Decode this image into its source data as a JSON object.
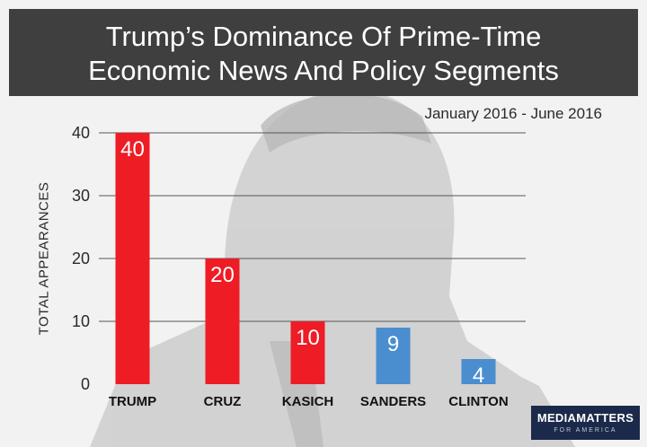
{
  "title_line1": "Trump’s Dominance Of Prime-Time",
  "title_line2": "Economic News And Policy Segments",
  "date_range": "January 2016 - June 2016",
  "logo": {
    "main": "MEDIAMATTERS",
    "sub": "FOR AMERICA"
  },
  "colors": {
    "republican": "#ee1c25",
    "democrat": "#4a8ed0",
    "title_bar": "#3f3f3f",
    "logo_bg": "#1b2a4a"
  },
  "chart_data": {
    "type": "bar",
    "title": "Trump’s Dominance Of Prime-Time Economic News And Policy Segments",
    "subtitle": "January 2016 - June 2016",
    "xlabel": "",
    "ylabel": "TOTAL APPEARANCES",
    "categories": [
      "TRUMP",
      "CRUZ",
      "KASICH",
      "SANDERS",
      "CLINTON"
    ],
    "values": [
      40,
      20,
      10,
      9,
      4
    ],
    "bar_colors": [
      "#ee1c25",
      "#ee1c25",
      "#ee1c25",
      "#4a8ed0",
      "#4a8ed0"
    ],
    "ylim": [
      0,
      40
    ],
    "yticks": [
      0,
      10,
      20,
      30,
      40
    ],
    "grid": true,
    "legend": "none"
  }
}
